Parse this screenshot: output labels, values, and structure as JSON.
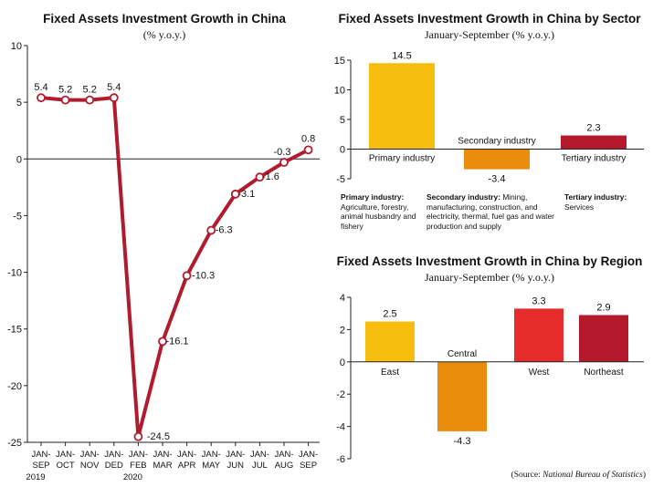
{
  "charts": {
    "line": {
      "title": "Fixed Assets Investment Growth in China",
      "subtitle": "(% y.o.y.)"
    },
    "sector": {
      "title": "Fixed Assets Investment Growth in China by Sector",
      "subtitle": "January-September (% y.o.y.)"
    },
    "region": {
      "title": "Fixed Assets Investment Growth in China by Region",
      "subtitle": "January-September (% y.o.y.)"
    }
  },
  "notes": [
    {
      "label": "Primary industry:",
      "text": "Agriculture, forestry, animal husbandry and fishery"
    },
    {
      "label": "Secondary industry:",
      "text": "Mining, manufacturing, construction, and electricity, thermal, fuel gas and water production and supply"
    },
    {
      "label": "Tertiary industry:",
      "text": "Services"
    }
  ],
  "source": {
    "prefix": "(Source: ",
    "name": "National Bureau of Statistics",
    "suffix": ")"
  },
  "colors": {
    "line": "#b01c2e",
    "bg": "#ffffff"
  },
  "chart_data": [
    {
      "type": "line",
      "title": "Fixed Assets Investment Growth in China",
      "subtitle": "(% y.o.y.)",
      "categories": [
        [
          "JAN-",
          "SEP"
        ],
        [
          "JAN-",
          "OCT"
        ],
        [
          "JAN-",
          "NOV"
        ],
        [
          "JAN-",
          "DED"
        ],
        [
          "JAN-",
          "FEB"
        ],
        [
          "JAN-",
          "MAR"
        ],
        [
          "JAN-",
          "APR"
        ],
        [
          "JAN-",
          "MAY"
        ],
        [
          "JAN-",
          "JUN"
        ],
        [
          "JAN-",
          "JUL"
        ],
        [
          "JAN-",
          "AUG"
        ],
        [
          "JAN-",
          "SEP"
        ]
      ],
      "year_labels": [
        {
          "index": 0,
          "text": "2019"
        },
        {
          "index": 4,
          "text": "2020"
        }
      ],
      "values": [
        5.4,
        5.2,
        5.2,
        5.4,
        -24.5,
        -16.1,
        -10.3,
        -6.3,
        -3.1,
        -1.6,
        -0.3,
        0.8
      ],
      "value_labels": [
        "5.4",
        "5.2",
        "5.2",
        "5.4",
        "-24.5",
        "-16.1",
        "-10.3",
        "-6.3",
        "-3.1",
        "-1.6",
        "-0.3",
        "0.8"
      ],
      "ylim": [
        -25,
        10
      ],
      "yticks": [
        10,
        5,
        0,
        -5,
        -10,
        -15,
        -20,
        -25
      ],
      "color": "#b01c2e"
    },
    {
      "type": "bar",
      "title": "Fixed Assets Investment Growth in China by Sector",
      "subtitle": "January-September (% y.o.y.)",
      "categories": [
        "Primary industry",
        "Secondary industry",
        "Tertiary industry"
      ],
      "values": [
        14.5,
        -3.4,
        2.3
      ],
      "value_labels": [
        "14.5",
        "-3.4",
        "2.3"
      ],
      "colors": [
        "#f6bd0c",
        "#e98b0b",
        "#b5192c"
      ],
      "ylim": [
        -5,
        15
      ],
      "yticks": [
        15,
        10,
        5,
        0,
        -5
      ]
    },
    {
      "type": "bar",
      "title": "Fixed Assets Investment Growth in China by Region",
      "subtitle": "January-September (% y.o.y.)",
      "categories": [
        "East",
        "Central",
        "West",
        "Northeast"
      ],
      "values": [
        2.5,
        -4.3,
        3.3,
        2.9
      ],
      "value_labels": [
        "2.5",
        "-4.3",
        "3.3",
        "2.9"
      ],
      "colors": [
        "#f6bd0c",
        "#e98b0b",
        "#e62b2b",
        "#b5192c"
      ],
      "ylim": [
        -6,
        4
      ],
      "yticks": [
        4,
        2,
        0,
        -2,
        -4,
        -6
      ]
    }
  ]
}
